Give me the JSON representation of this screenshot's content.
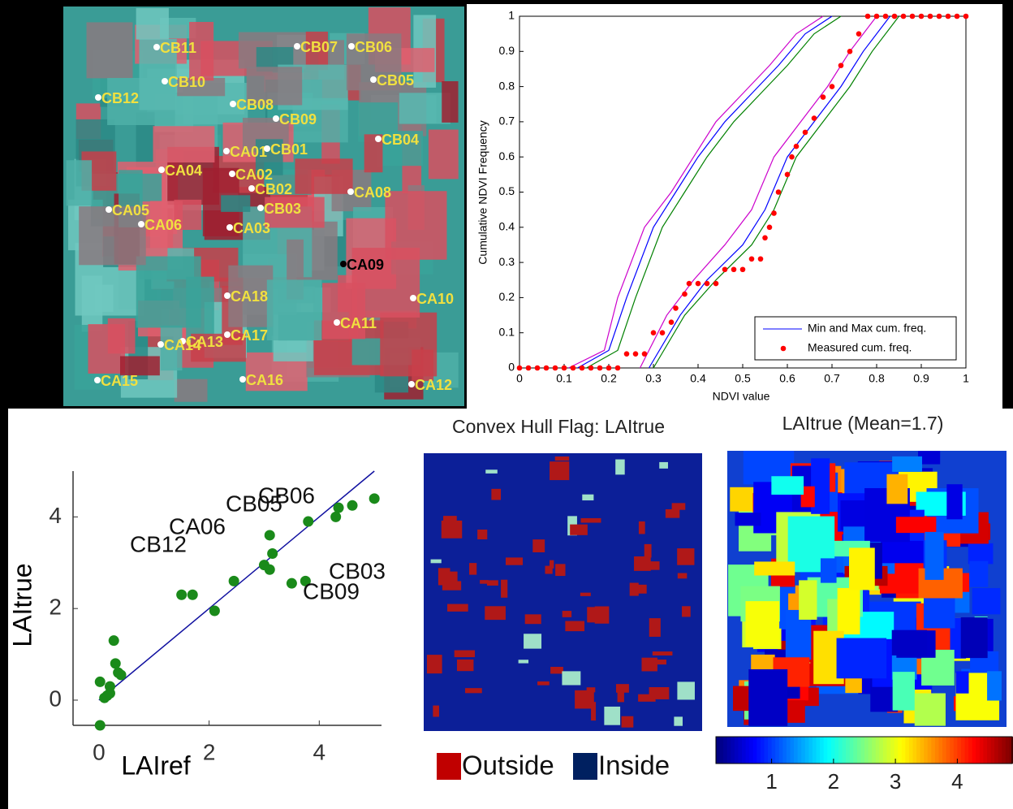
{
  "satellite_image": {
    "labels": [
      "CB11",
      "CB07",
      "CB06",
      "CB10",
      "CB05",
      "CB12",
      "CB08",
      "CB09",
      "CB04",
      "CA01",
      "CB01",
      "CA04",
      "CA02",
      "CB02",
      "CA08",
      "CB03",
      "CA05",
      "CA06",
      "CA03",
      "CA09",
      "CA18",
      "CA10",
      "CA11",
      "CA13",
      "CA14",
      "CA17",
      "CA15",
      "CA16",
      "CA12"
    ]
  },
  "chart_data": [
    {
      "type": "line",
      "xlabel": "NDVI value",
      "ylabel": "Cumulative NDVI Frequency",
      "xlim": [
        0,
        1
      ],
      "ylim": [
        0,
        1
      ],
      "xticks": [
        0,
        0.1,
        0.2,
        0.3,
        0.4,
        0.5,
        0.6,
        0.7,
        0.8,
        0.9,
        1
      ],
      "yticks": [
        0,
        0.1,
        0.2,
        0.3,
        0.4,
        0.5,
        0.6,
        0.7,
        0.8,
        0.9,
        1
      ],
      "legend": "lower right",
      "series": [
        {
          "name": "Min and Max cum. freq.",
          "color": "#0000ff",
          "x": [
            0.13,
            0.2,
            0.24,
            0.3,
            0.35,
            0.4,
            0.46,
            0.52,
            0.58,
            0.64,
            0.7
          ],
          "y": [
            0,
            0.05,
            0.2,
            0.4,
            0.5,
            0.6,
            0.7,
            0.78,
            0.86,
            0.95,
            1
          ]
        },
        {
          "color": "#cc00cc",
          "x": [
            0.11,
            0.19,
            0.22,
            0.28,
            0.34,
            0.39,
            0.44,
            0.5,
            0.56,
            0.62,
            0.68
          ],
          "y": [
            0,
            0.05,
            0.2,
            0.4,
            0.5,
            0.6,
            0.7,
            0.78,
            0.86,
            0.95,
            1
          ]
        },
        {
          "color": "#008000",
          "x": [
            0.15,
            0.22,
            0.26,
            0.32,
            0.37,
            0.42,
            0.48,
            0.54,
            0.6,
            0.66,
            0.72
          ],
          "y": [
            0,
            0.05,
            0.2,
            0.4,
            0.5,
            0.6,
            0.7,
            0.78,
            0.86,
            0.95,
            1
          ]
        },
        {
          "color": "#0000ff",
          "x": [
            0.29,
            0.36,
            0.42,
            0.5,
            0.55,
            0.6,
            0.66,
            0.72,
            0.77,
            0.83
          ],
          "y": [
            0,
            0.15,
            0.25,
            0.35,
            0.45,
            0.6,
            0.7,
            0.8,
            0.9,
            1
          ]
        },
        {
          "color": "#cc00cc",
          "x": [
            0.27,
            0.33,
            0.39,
            0.46,
            0.52,
            0.57,
            0.63,
            0.69,
            0.74,
            0.8
          ],
          "y": [
            0,
            0.15,
            0.25,
            0.35,
            0.45,
            0.6,
            0.7,
            0.8,
            0.9,
            1
          ]
        },
        {
          "color": "#008000",
          "x": [
            0.3,
            0.37,
            0.44,
            0.52,
            0.57,
            0.62,
            0.68,
            0.74,
            0.79,
            0.85
          ],
          "y": [
            0,
            0.15,
            0.25,
            0.35,
            0.45,
            0.6,
            0.7,
            0.8,
            0.9,
            1
          ]
        },
        {
          "name": "Measured cum. freq.",
          "color": "#ff0000",
          "marker": "dot",
          "x": [
            0,
            0.02,
            0.04,
            0.06,
            0.08,
            0.1,
            0.12,
            0.14,
            0.16,
            0.18,
            0.2,
            0.22,
            0.24,
            0.26,
            0.28,
            0.3,
            0.32,
            0.34,
            0.35,
            0.37,
            0.38,
            0.4,
            0.42,
            0.44,
            0.46,
            0.48,
            0.5,
            0.52,
            0.54,
            0.55,
            0.56,
            0.57,
            0.58,
            0.6,
            0.61,
            0.62,
            0.64,
            0.66,
            0.68,
            0.7,
            0.72,
            0.74,
            0.76,
            0.78,
            0.8,
            0.82,
            0.84,
            0.86,
            0.88,
            0.9,
            0.92,
            0.94,
            0.96,
            0.98,
            1
          ],
          "y": [
            0,
            0,
            0,
            0,
            0,
            0,
            0,
            0,
            0,
            0,
            0,
            0,
            0.04,
            0.04,
            0.04,
            0.1,
            0.1,
            0.13,
            0.17,
            0.21,
            0.24,
            0.24,
            0.24,
            0.24,
            0.28,
            0.28,
            0.28,
            0.31,
            0.31,
            0.37,
            0.4,
            0.44,
            0.5,
            0.55,
            0.6,
            0.63,
            0.67,
            0.71,
            0.77,
            0.8,
            0.86,
            0.9,
            0.95,
            1,
            1,
            1,
            1,
            1,
            1,
            1,
            1,
            1,
            1,
            1,
            1
          ]
        }
      ]
    },
    {
      "type": "scatter",
      "xlabel": "LAIref",
      "ylabel": "LAItrue",
      "xlim": [
        -0.47,
        5.13
      ],
      "ylim": [
        -0.55,
        5.0
      ],
      "xticks": [
        0,
        2,
        4
      ],
      "yticks": [
        0,
        2,
        4
      ],
      "series": [
        {
          "color": "#1a8a1a",
          "x": [
            0.02,
            0.02,
            0.1,
            0.15,
            0.2,
            0.27,
            0.3,
            0.35,
            0.4,
            0.2,
            1.5,
            1.7,
            2.1,
            2.45,
            3.0,
            3.1,
            3.15,
            3.1,
            3.5,
            3.75,
            3.8,
            4.3,
            4.35,
            4.6,
            5.0
          ],
          "y": [
            -0.55,
            0.4,
            0.05,
            0.1,
            0.3,
            1.3,
            0.8,
            0.6,
            0.55,
            0.15,
            2.3,
            2.3,
            1.95,
            2.6,
            2.95,
            2.85,
            3.2,
            3.6,
            2.55,
            2.6,
            3.9,
            4.0,
            4.2,
            4.25,
            4.4
          ]
        }
      ],
      "line": {
        "color": "#1010a0",
        "x": [
          0,
          5
        ],
        "y": [
          0,
          5
        ]
      },
      "annotations": [
        "CB05",
        "CB06",
        "CA06",
        "CB12",
        "CB03",
        "CB09"
      ]
    },
    {
      "type": "map",
      "title": "Convex Hull Flag: LAItrue",
      "legend": [
        {
          "name": "Outside",
          "color": "#c00000"
        },
        {
          "name": "Inside",
          "color": "#002060"
        }
      ]
    },
    {
      "type": "heatmap",
      "title": "LAItrue (Mean=1.7)",
      "clim": [
        0.1,
        4.9
      ],
      "cticks": [
        1,
        2,
        3,
        4
      ]
    }
  ]
}
